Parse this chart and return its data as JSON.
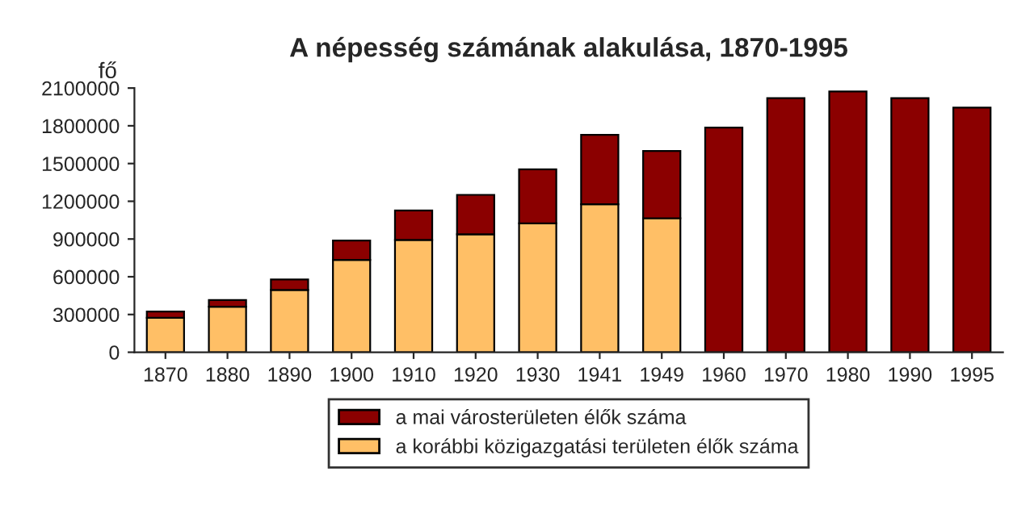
{
  "chart_data": {
    "type": "bar",
    "title": "A népesség számának alakulása, 1870-1995",
    "ylabel": "fő",
    "stacked": true,
    "categories": [
      "1870",
      "1880",
      "1890",
      "1900",
      "1910",
      "1920",
      "1930",
      "1941",
      "1949",
      "1960",
      "1970",
      "1980",
      "1990",
      "1995"
    ],
    "series": [
      {
        "name": "a korábbi közigazgatási területen élők száma",
        "color": "#ffbf66",
        "values": [
          274000,
          362000,
          495000,
          734000,
          893000,
          937000,
          1025000,
          1176000,
          1065000,
          null,
          null,
          null,
          null,
          null
        ]
      },
      {
        "name": "a mai városterületen élők száma",
        "color": "#8b0000",
        "values": [
          49000,
          53000,
          84000,
          154000,
          234000,
          314000,
          429000,
          552000,
          535000,
          1786000,
          2020000,
          2073000,
          2020000,
          1945000
        ]
      }
    ],
    "ylim": [
      0,
      2100000
    ],
    "yticks": [
      0,
      300000,
      600000,
      900000,
      1200000,
      1500000,
      1800000,
      2100000
    ],
    "grid": false,
    "legend": "bottom"
  }
}
